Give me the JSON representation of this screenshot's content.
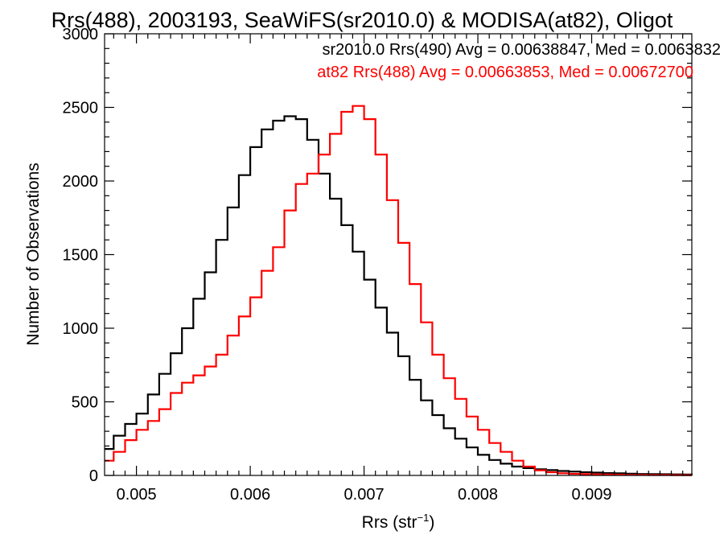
{
  "chart_data": {
    "type": "line",
    "title": "Rrs(488), 2003193, SeaWiFS(sr2010.0) & MODISA(at82), Oligot",
    "xlabel_main": "Rrs (str",
    "xlabel_exp": "−1",
    "xlabel_close": ")",
    "ylabel": "Number of Observations",
    "xlim": [
      0.00472,
      0.00988
    ],
    "ylim": [
      0,
      3000
    ],
    "x_ticks": [
      0.005,
      0.006,
      0.007,
      0.008,
      0.009
    ],
    "x_tick_labels": [
      "0.005",
      "0.006",
      "0.007",
      "0.008",
      "0.009"
    ],
    "y_ticks": [
      0,
      500,
      1000,
      1500,
      2000,
      2500,
      3000
    ],
    "y_tick_labels": [
      "0",
      "500",
      "1000",
      "1500",
      "2000",
      "2500",
      "3000"
    ],
    "grid": false,
    "legend": "top-right",
    "series": [
      {
        "name": "sr2010.0 Rrs(490) Avg = 0.00638847, Med = 0.0063832",
        "color": "#000000",
        "x": [
          0.00472,
          0.0048,
          0.0049,
          0.005,
          0.0051,
          0.0052,
          0.0053,
          0.0054,
          0.0055,
          0.0056,
          0.0057,
          0.0058,
          0.0059,
          0.006,
          0.0061,
          0.0062,
          0.0063,
          0.0064,
          0.0065,
          0.0066,
          0.0067,
          0.0068,
          0.0069,
          0.007,
          0.0071,
          0.0072,
          0.0073,
          0.0074,
          0.0075,
          0.0076,
          0.0077,
          0.0078,
          0.0079,
          0.008,
          0.0081,
          0.0082,
          0.0083,
          0.0084,
          0.0085,
          0.0086,
          0.0087,
          0.0088,
          0.0089,
          0.009,
          0.0091,
          0.0092,
          0.0093,
          0.0094,
          0.0095,
          0.0096,
          0.0097,
          0.0098,
          0.00988
        ],
        "y": [
          180,
          270,
          350,
          420,
          550,
          690,
          830,
          1000,
          1200,
          1380,
          1600,
          1820,
          2040,
          2230,
          2350,
          2410,
          2440,
          2420,
          2280,
          2050,
          1880,
          1700,
          1520,
          1330,
          1140,
          970,
          810,
          650,
          510,
          410,
          320,
          250,
          190,
          140,
          105,
          80,
          60,
          50,
          42,
          36,
          30,
          26,
          22,
          19,
          16,
          14,
          12,
          10,
          9,
          8,
          7,
          6,
          5
        ]
      },
      {
        "name": "at82 Rrs(488) Avg = 0.00663853, Med = 0.00672700",
        "color": "#ff0000",
        "x": [
          0.00472,
          0.0048,
          0.0049,
          0.005,
          0.0051,
          0.0052,
          0.0053,
          0.0054,
          0.0055,
          0.0056,
          0.0057,
          0.0058,
          0.0059,
          0.006,
          0.0061,
          0.0062,
          0.0063,
          0.0064,
          0.0065,
          0.0066,
          0.0067,
          0.0068,
          0.0069,
          0.007,
          0.0071,
          0.0072,
          0.0073,
          0.0074,
          0.0075,
          0.0076,
          0.0077,
          0.0078,
          0.0079,
          0.008,
          0.0081,
          0.0082,
          0.0083,
          0.0084,
          0.0085,
          0.0086,
          0.0087,
          0.0088,
          0.0089,
          0.009,
          0.0091,
          0.0092,
          0.0093,
          0.0094,
          0.0095,
          0.0096,
          0.0097,
          0.0098,
          0.00988
        ],
        "y": [
          100,
          160,
          240,
          310,
          370,
          450,
          560,
          630,
          680,
          740,
          820,
          950,
          1080,
          1210,
          1390,
          1550,
          1800,
          1980,
          2050,
          2180,
          2320,
          2470,
          2510,
          2420,
          2180,
          1870,
          1580,
          1300,
          1040,
          820,
          660,
          520,
          400,
          310,
          220,
          160,
          100,
          60,
          35,
          22,
          15,
          11,
          9,
          7,
          6,
          5,
          4,
          4,
          3,
          3,
          2,
          2,
          2
        ]
      }
    ]
  }
}
